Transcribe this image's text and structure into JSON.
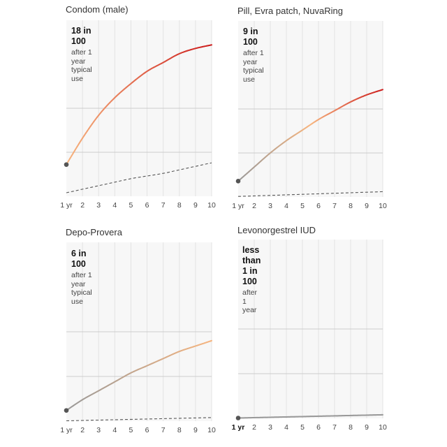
{
  "chart_data": [
    {
      "type": "line",
      "title": "Condom (male)",
      "annotation": {
        "headline": "18 in 100",
        "lines": [
          "after 1 year",
          "typical use"
        ]
      },
      "x": [
        1,
        2,
        3,
        4,
        5,
        6,
        7,
        8,
        9,
        10
      ],
      "tick_labels": [
        "1 yr",
        "2",
        "3",
        "4",
        "5",
        "6",
        "7",
        "8",
        "9",
        "10"
      ],
      "ylim": [
        0,
        100
      ],
      "grid": true,
      "series": [
        {
          "style": "solid",
          "color_low": "#f7b57f",
          "color_high": "#cc1a1a",
          "values": [
            18,
            33,
            46,
            56,
            64,
            71,
            76,
            81,
            84,
            86
          ]
        },
        {
          "style": "dashed",
          "color": "#555555",
          "values": [
            2,
            4,
            6,
            8,
            10,
            11.5,
            13,
            15,
            17,
            19
          ]
        }
      ]
    },
    {
      "type": "line",
      "title": "Pill, Evra patch, NuvaRing",
      "annotation": {
        "headline": "9 in 100",
        "lines": [
          "after 1 year",
          "typical use"
        ]
      },
      "x": [
        1,
        2,
        3,
        4,
        5,
        6,
        7,
        8,
        9,
        10
      ],
      "tick_labels": [
        "1 yr",
        "2",
        "3",
        "4",
        "5",
        "6",
        "7",
        "8",
        "9",
        "10"
      ],
      "ylim": [
        0,
        100
      ],
      "grid": true,
      "series": [
        {
          "style": "solid",
          "color_low": "#999999",
          "color_mid": "#f7b57f",
          "color_high": "#cc1a1a",
          "values": [
            9,
            17,
            25,
            32,
            38,
            44,
            49,
            54,
            58,
            61
          ]
        },
        {
          "style": "dashed",
          "color": "#555555",
          "values": [
            0.3,
            0.6,
            0.9,
            1.2,
            1.5,
            1.8,
            2.1,
            2.4,
            2.7,
            3
          ]
        }
      ]
    },
    {
      "type": "line",
      "title": "Depo-Provera",
      "annotation": {
        "headline": "6 in 100",
        "lines": [
          "after 1 year",
          "typical use"
        ]
      },
      "x": [
        1,
        2,
        3,
        4,
        5,
        6,
        7,
        8,
        9,
        10
      ],
      "tick_labels": [
        "1 yr",
        "2",
        "3",
        "4",
        "5",
        "6",
        "7",
        "8",
        "9",
        "10"
      ],
      "ylim": [
        0,
        100
      ],
      "grid": true,
      "series": [
        {
          "style": "solid",
          "color_low": "#999999",
          "color_high": "#f7b57f",
          "values": [
            6,
            12,
            17,
            22,
            27,
            31,
            35,
            39,
            42,
            45
          ]
        },
        {
          "style": "dashed",
          "color": "#555555",
          "values": [
            0.2,
            0.4,
            0.6,
            0.8,
            1.0,
            1.2,
            1.4,
            1.6,
            1.8,
            2.0
          ]
        }
      ]
    },
    {
      "type": "line",
      "title": "Levonorgestrel IUD",
      "annotation": {
        "headline": "less than 1 in 100",
        "lines": [
          "after 1 year"
        ]
      },
      "x": [
        1,
        2,
        3,
        4,
        5,
        6,
        7,
        8,
        9,
        10
      ],
      "tick_labels": [
        "1 yr",
        "2",
        "3",
        "4",
        "5",
        "6",
        "7",
        "8",
        "9",
        "10"
      ],
      "tick_labels_bold_first": true,
      "ylim": [
        0,
        100
      ],
      "grid": true,
      "series": [
        {
          "style": "solid",
          "color_low": "#999999",
          "color_high": "#999999",
          "values": [
            0.2,
            0.4,
            0.6,
            0.8,
            1.0,
            1.2,
            1.4,
            1.6,
            1.8,
            2.0
          ]
        }
      ]
    }
  ]
}
